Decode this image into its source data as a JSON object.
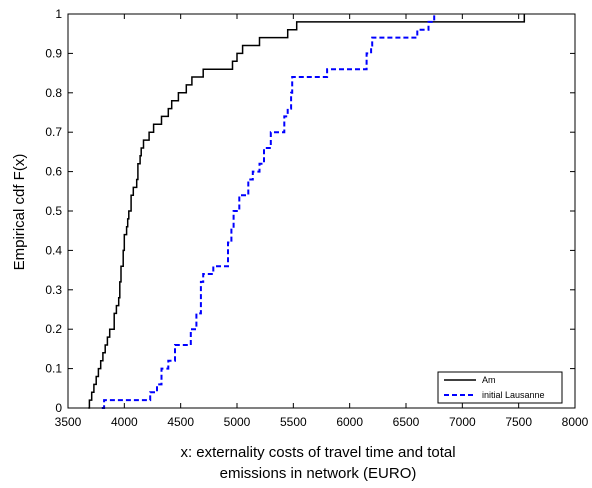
{
  "chart_data": {
    "type": "line",
    "subtype": "step (empirical CDF)",
    "title": "",
    "xlabel_lines": [
      "x: externality costs of travel time and total",
      "emissions in network (EURO)"
    ],
    "ylabel": "Empirical cdf F(x)",
    "xlim": [
      3500,
      8000
    ],
    "ylim": [
      0,
      1
    ],
    "xticks": [
      3500,
      4000,
      4500,
      5000,
      5500,
      6000,
      6500,
      7000,
      7500,
      8000
    ],
    "yticks": [
      0,
      0.1,
      0.2,
      0.3,
      0.4,
      0.5,
      0.6,
      0.7,
      0.8,
      0.9,
      1
    ],
    "ytick_labels": [
      "0",
      "0.1",
      "0.2",
      "0.3",
      "0.4",
      "0.5",
      "0.6",
      "0.7",
      "0.8",
      "0.9",
      "1"
    ],
    "grid": false,
    "legend_position": "bottom-right",
    "series": [
      {
        "name": "Am",
        "color": "#000000",
        "line_style": "solid",
        "x": [
          3680,
          3690,
          3710,
          3730,
          3750,
          3770,
          3790,
          3810,
          3830,
          3850,
          3870,
          3910,
          3930,
          3950,
          3960,
          3970,
          3990,
          4000,
          4020,
          4030,
          4040,
          4060,
          4080,
          4110,
          4120,
          4140,
          4150,
          4170,
          4190,
          4220,
          4260,
          4290,
          4330,
          4360,
          4390,
          4420,
          4450,
          4480,
          4520,
          4550,
          4580,
          4600,
          4650,
          4700,
          4800,
          4960,
          5000,
          5050,
          5100,
          5200,
          5450,
          5530,
          7550
        ],
        "y": [
          0,
          0.02,
          0.04,
          0.06,
          0.08,
          0.1,
          0.12,
          0.14,
          0.16,
          0.18,
          0.2,
          0.24,
          0.26,
          0.28,
          0.32,
          0.36,
          0.4,
          0.44,
          0.46,
          0.48,
          0.5,
          0.54,
          0.56,
          0.58,
          0.62,
          0.64,
          0.66,
          0.68,
          0.68,
          0.7,
          0.72,
          0.72,
          0.74,
          0.74,
          0.76,
          0.78,
          0.78,
          0.8,
          0.8,
          0.82,
          0.82,
          0.84,
          0.84,
          0.86,
          0.86,
          0.88,
          0.9,
          0.92,
          0.92,
          0.94,
          0.96,
          0.98,
          1.0
        ]
      },
      {
        "name": "initial Lausanne",
        "color": "#0000ff",
        "line_style": "dashed",
        "x": [
          3800,
          3820,
          4230,
          4290,
          4330,
          4390,
          4450,
          4590,
          4640,
          4680,
          4700,
          4790,
          4920,
          4950,
          4970,
          5020,
          5100,
          5140,
          5200,
          5240,
          5300,
          5420,
          5450,
          5480,
          5490,
          5520,
          5700,
          5800,
          5900,
          6150,
          6190,
          6200,
          6400,
          6600,
          6700,
          6750
        ],
        "y": [
          0,
          0.02,
          0.04,
          0.06,
          0.1,
          0.12,
          0.16,
          0.2,
          0.24,
          0.32,
          0.34,
          0.36,
          0.42,
          0.46,
          0.5,
          0.54,
          0.58,
          0.6,
          0.62,
          0.66,
          0.7,
          0.74,
          0.76,
          0.8,
          0.84,
          0.84,
          0.84,
          0.86,
          0.86,
          0.9,
          0.92,
          0.94,
          0.94,
          0.96,
          0.98,
          1.0
        ]
      }
    ]
  }
}
